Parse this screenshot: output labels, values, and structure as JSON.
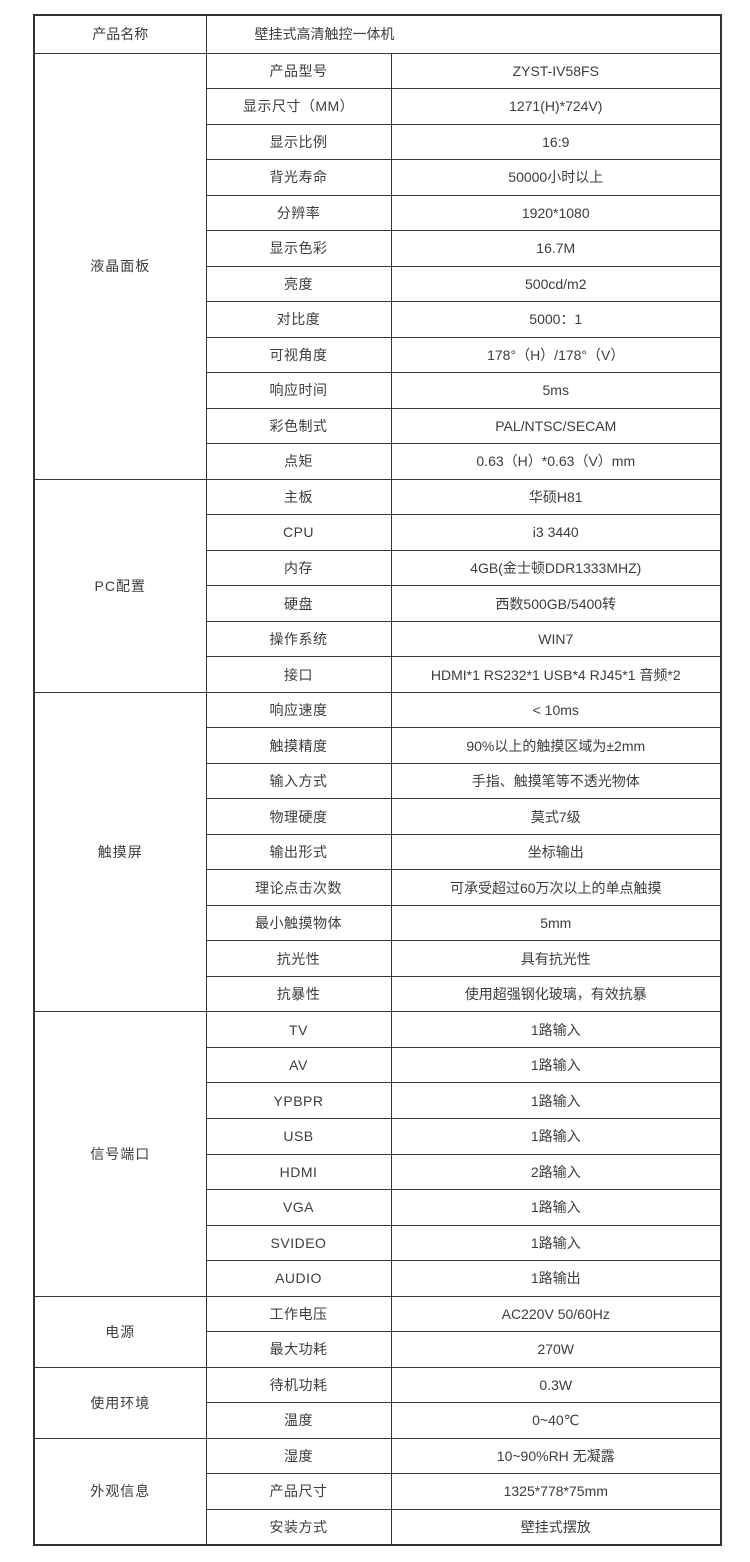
{
  "page": {
    "background": "#ffffff",
    "border_color": "#333333",
    "text_color": "#3d3d3d"
  },
  "header_row": {
    "label": "产品名称",
    "value": "壁挂式高清触控一体机"
  },
  "sections": [
    {
      "name": "液晶面板",
      "rows": [
        {
          "label": "产品型号",
          "value": "ZYST-IV58FS"
        },
        {
          "label": "显示尺寸（MM）",
          "value": "1271(H)*724V)"
        },
        {
          "label": "显示比例",
          "value": "16:9"
        },
        {
          "label": "背光寿命",
          "value": "50000小时以上"
        },
        {
          "label": "分辨率",
          "value": "1920*1080"
        },
        {
          "label": "显示色彩",
          "value": "16.7M"
        },
        {
          "label": "亮度",
          "value": "500cd/m2"
        },
        {
          "label": "对比度",
          "value": "5000：1"
        },
        {
          "label": "可视角度",
          "value": "178°（H）/178°（V）"
        },
        {
          "label": "响应时间",
          "value": "5ms"
        },
        {
          "label": "彩色制式",
          "value": "PAL/NTSC/SECAM"
        },
        {
          "label": "点矩",
          "value": "0.63（H）*0.63（V）mm"
        }
      ]
    },
    {
      "name": "PC配置",
      "rows": [
        {
          "label": "主板",
          "value": "华硕H81"
        },
        {
          "label": "CPU",
          "value": "i3 3440"
        },
        {
          "label": "内存",
          "value": "4GB(金士顿DDR1333MHZ)"
        },
        {
          "label": "硬盘",
          "value": "西数500GB/5400转"
        },
        {
          "label": "操作系统",
          "value": "WIN7"
        },
        {
          "label": "接口",
          "value": "HDMI*1  RS232*1 USB*4 RJ45*1 音频*2"
        }
      ]
    },
    {
      "name": "触摸屏",
      "rows": [
        {
          "label": "响应速度",
          "value": "< 10ms"
        },
        {
          "label": "触摸精度",
          "value": "90%以上的触摸区域为±2mm"
        },
        {
          "label": "输入方式",
          "value": "手指、触摸笔等不透光物体"
        },
        {
          "label": "物理硬度",
          "value": "莫式7级"
        },
        {
          "label": "输出形式",
          "value": "坐标输出"
        },
        {
          "label": "理论点击次数",
          "value": "可承受超过60万次以上的单点触摸"
        },
        {
          "label": "最小触摸物体",
          "value": "5mm"
        },
        {
          "label": "抗光性",
          "value": "具有抗光性"
        },
        {
          "label": "抗暴性",
          "value": "使用超强钢化玻璃，有效抗暴"
        }
      ]
    },
    {
      "name": "信号端口",
      "rows": [
        {
          "label": "TV",
          "value": "1路输入"
        },
        {
          "label": "AV",
          "value": "1路输入"
        },
        {
          "label": "YPBPR",
          "value": "1路输入"
        },
        {
          "label": "USB",
          "value": "1路输入"
        },
        {
          "label": "HDMI",
          "value": "2路输入"
        },
        {
          "label": "VGA",
          "value": "1路输入"
        },
        {
          "label": "SVIDEO",
          "value": "1路输入"
        },
        {
          "label": "AUDIO",
          "value": "1路输出"
        }
      ]
    },
    {
      "name": "电源",
      "rows": [
        {
          "label": "工作电压",
          "value": "AC220V 50/60Hz"
        },
        {
          "label": "最大功耗",
          "value": "270W"
        }
      ]
    },
    {
      "name": "使用环境",
      "rows": [
        {
          "label": "待机功耗",
          "value": "0.3W"
        },
        {
          "label": "温度",
          "value": "0~40℃"
        }
      ]
    },
    {
      "name": "外观信息",
      "rows": [
        {
          "label": "湿度",
          "value": "10~90%RH 无凝露"
        },
        {
          "label": "产品尺寸",
          "value": "1325*778*75mm"
        },
        {
          "label": "安装方式",
          "value": "壁挂式摆放"
        }
      ]
    }
  ]
}
